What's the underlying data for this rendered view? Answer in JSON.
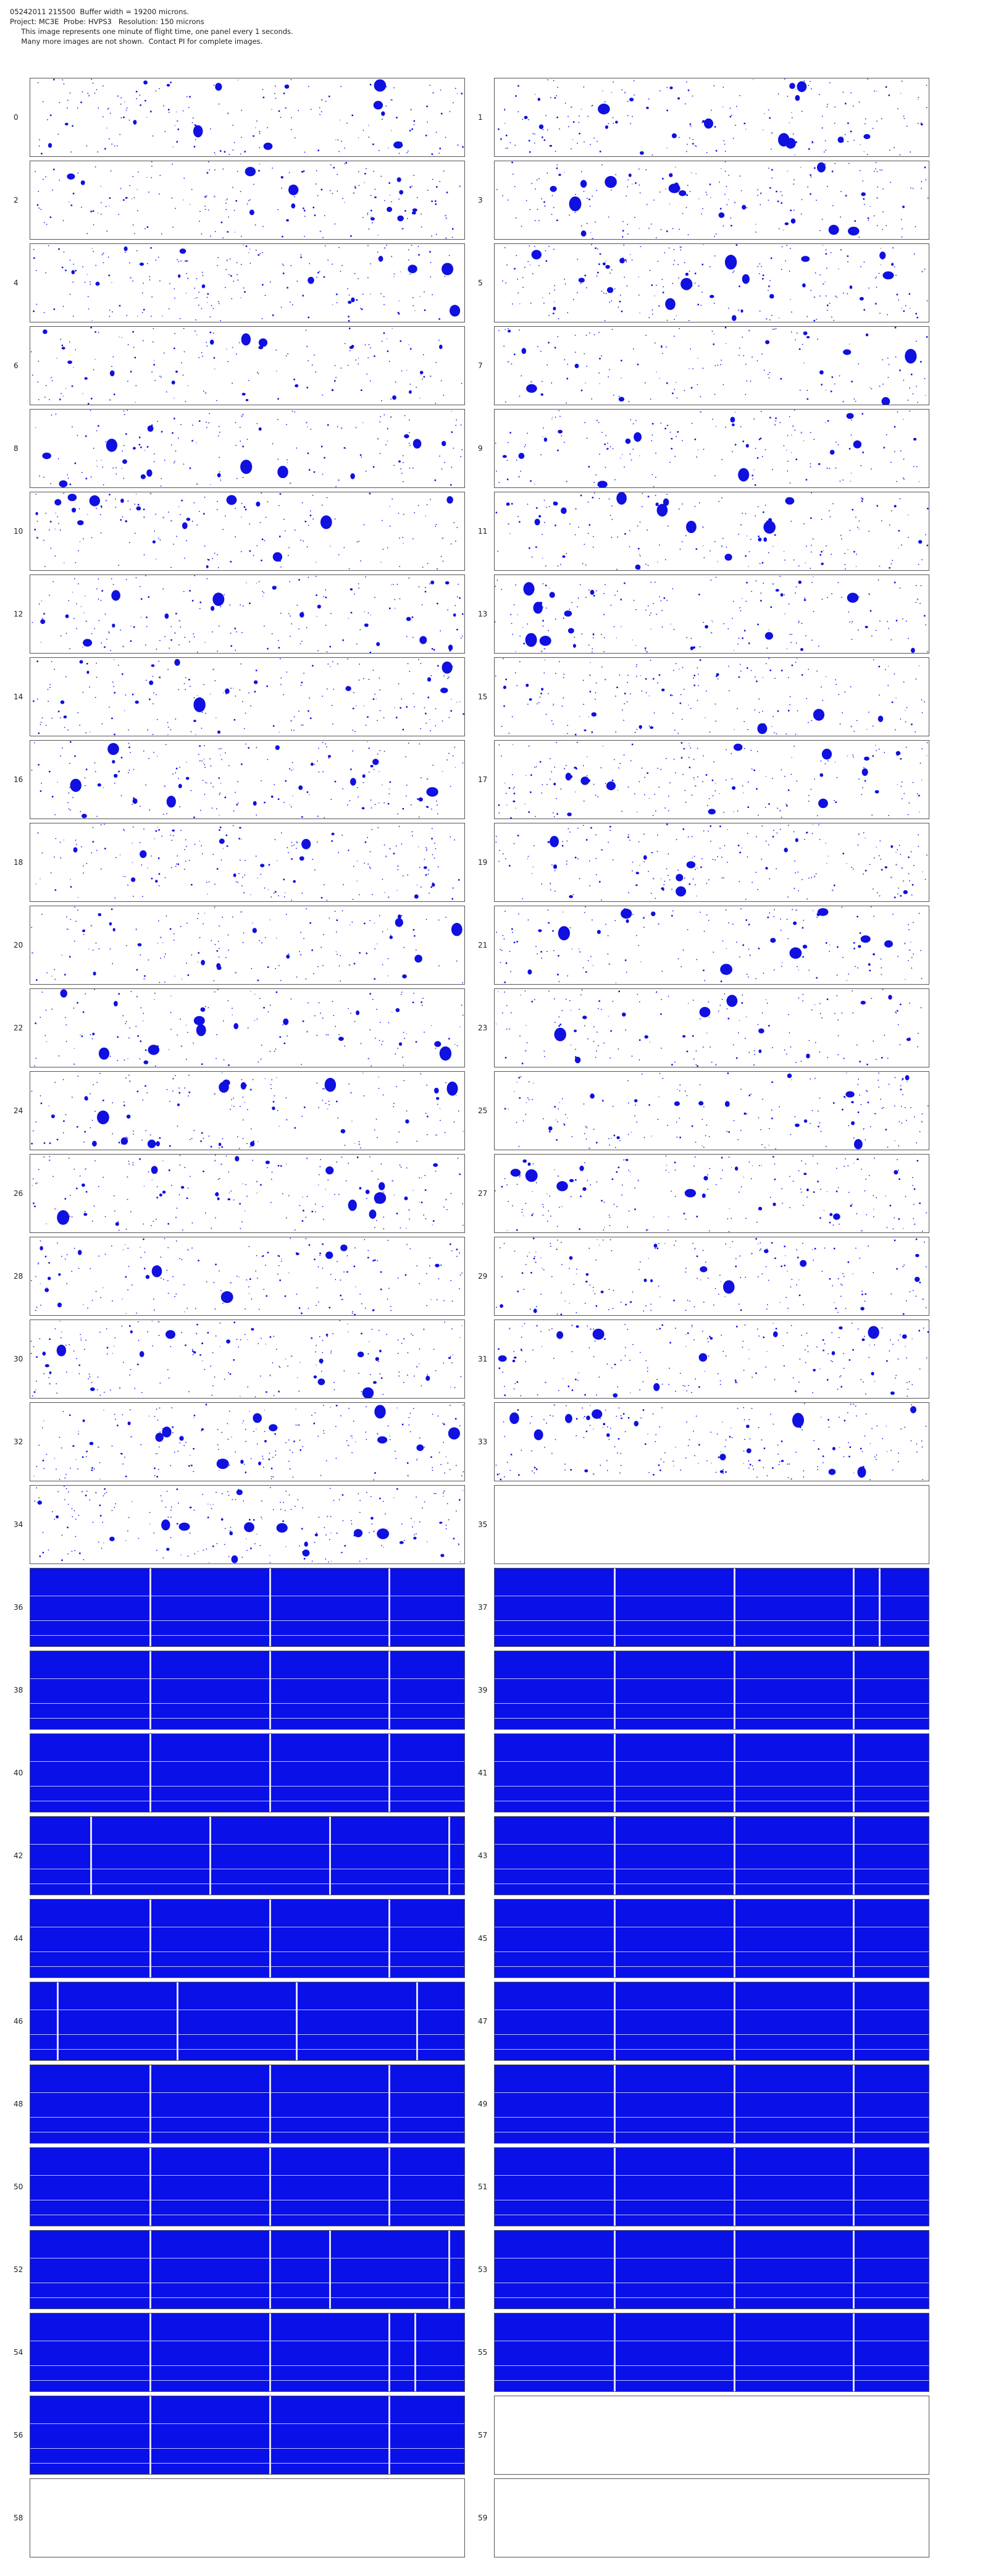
{
  "header": {
    "line1": "05242011 215500  Buffer width = 19200 microns.",
    "line2": "Project: MC3E  Probe: HVPS3   Resolution: 150 microns",
    "line3": "     This image represents one minute of flight time, one panel every 1 seconds.",
    "line4": "     Many more images are not shown.  Contact PI for complete images."
  },
  "colors": {
    "particle": "#1010e0",
    "saturated": "#0a10e8",
    "frame": "#555555"
  },
  "panels": [
    {
      "label": "0",
      "type": "particles"
    },
    {
      "label": "1",
      "type": "particles"
    },
    {
      "label": "2",
      "type": "particles"
    },
    {
      "label": "3",
      "type": "particles"
    },
    {
      "label": "4",
      "type": "particles"
    },
    {
      "label": "5",
      "type": "particles"
    },
    {
      "label": "6",
      "type": "particles"
    },
    {
      "label": "7",
      "type": "particles"
    },
    {
      "label": "8",
      "type": "particles"
    },
    {
      "label": "9",
      "type": "particles"
    },
    {
      "label": "10",
      "type": "particles"
    },
    {
      "label": "11",
      "type": "particles"
    },
    {
      "label": "12",
      "type": "particles"
    },
    {
      "label": "13",
      "type": "particles"
    },
    {
      "label": "14",
      "type": "particles"
    },
    {
      "label": "15",
      "type": "particles"
    },
    {
      "label": "16",
      "type": "particles"
    },
    {
      "label": "17",
      "type": "particles"
    },
    {
      "label": "18",
      "type": "particles"
    },
    {
      "label": "19",
      "type": "particles"
    },
    {
      "label": "20",
      "type": "particles"
    },
    {
      "label": "21",
      "type": "particles"
    },
    {
      "label": "22",
      "type": "particles"
    },
    {
      "label": "23",
      "type": "particles"
    },
    {
      "label": "24",
      "type": "particles"
    },
    {
      "label": "25",
      "type": "particles"
    },
    {
      "label": "26",
      "type": "particles"
    },
    {
      "label": "27",
      "type": "particles"
    },
    {
      "label": "28",
      "type": "particles"
    },
    {
      "label": "29",
      "type": "particles"
    },
    {
      "label": "30",
      "type": "particles"
    },
    {
      "label": "31",
      "type": "particles"
    },
    {
      "label": "32",
      "type": "particles"
    },
    {
      "label": "33",
      "type": "particles"
    },
    {
      "label": "34",
      "type": "particles"
    },
    {
      "label": "35",
      "type": "empty"
    },
    {
      "label": "36",
      "type": "saturated"
    },
    {
      "label": "37",
      "type": "saturated"
    },
    {
      "label": "38",
      "type": "saturated"
    },
    {
      "label": "39",
      "type": "saturated"
    },
    {
      "label": "40",
      "type": "saturated"
    },
    {
      "label": "41",
      "type": "saturated"
    },
    {
      "label": "42",
      "type": "saturated"
    },
    {
      "label": "43",
      "type": "saturated"
    },
    {
      "label": "44",
      "type": "saturated"
    },
    {
      "label": "45",
      "type": "saturated"
    },
    {
      "label": "46",
      "type": "saturated"
    },
    {
      "label": "47",
      "type": "saturated"
    },
    {
      "label": "48",
      "type": "saturated"
    },
    {
      "label": "49",
      "type": "saturated"
    },
    {
      "label": "50",
      "type": "saturated"
    },
    {
      "label": "51",
      "type": "saturated"
    },
    {
      "label": "52",
      "type": "saturated"
    },
    {
      "label": "53",
      "type": "saturated"
    },
    {
      "label": "54",
      "type": "saturated"
    },
    {
      "label": "55",
      "type": "saturated"
    },
    {
      "label": "56",
      "type": "saturated"
    },
    {
      "label": "57",
      "type": "empty"
    },
    {
      "label": "58",
      "type": "empty"
    },
    {
      "label": "59",
      "type": "empty"
    }
  ]
}
